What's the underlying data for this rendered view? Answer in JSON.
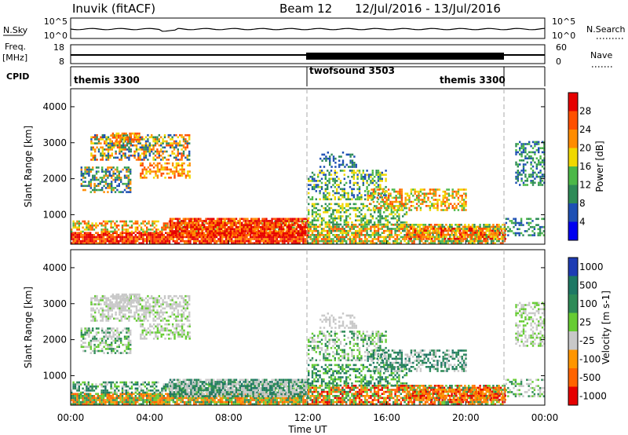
{
  "header": {
    "title": "Inuvik (fitACF)",
    "beam": "Beam 12",
    "dates": "12/Jul/2016 - 13/Jul/2016"
  },
  "panels": {
    "nsky_label": "N.Sky",
    "nsky_ticks": [
      "10^5",
      "10^0"
    ],
    "nsearch_label": "N.Search",
    "nsearch_ticks": [
      "10^5",
      "10^0"
    ],
    "freq_label": "Freq.",
    "freq_unit": "[MHz]",
    "freq_ticks": [
      "18",
      "8"
    ],
    "nave_label": "Nave",
    "nave_ticks": [
      "60",
      "0"
    ],
    "cpid_label": "CPID",
    "cpid_segments": [
      "themis 3300",
      "twofsound 3503",
      "themis 3300"
    ]
  },
  "colors": {
    "power": [
      "#0000f0",
      "#1e50b4",
      "#2e8b57",
      "#4cb848",
      "#f0d800",
      "#ff8c00",
      "#ff5000",
      "#e60000"
    ],
    "velocity": [
      "#1e3cb4",
      "#1e7864",
      "#2e8b57",
      "#66cc33",
      "#c8c8c8",
      "#ff9600",
      "#ff6400",
      "#e60000"
    ]
  },
  "chart_data": [
    {
      "type": "heatmap",
      "title": "",
      "xlabel": "Time UT",
      "ylabel": "Slant Range [km]",
      "xticks": [
        "00:00",
        "04:00",
        "08:00",
        "12:00",
        "16:00",
        "20:00",
        "00:00"
      ],
      "yticks": [
        "1000",
        "2000",
        "3000",
        "4000"
      ],
      "ylim": [
        180,
        4500
      ],
      "xlim": [
        "12/Jul/2016 00:00",
        "13/Jul/2016 00:00"
      ],
      "colorbar_label": "Power [dB]",
      "colorbar_ticks": [
        "4",
        "8",
        "12",
        "16",
        "20",
        "24",
        "28"
      ],
      "colorbar_range": [
        0,
        30
      ]
    },
    {
      "type": "heatmap",
      "title": "",
      "xlabel": "Time UT",
      "ylabel": "Slant Range [km]",
      "xticks": [
        "00:00",
        "04:00",
        "08:00",
        "12:00",
        "16:00",
        "20:00",
        "00:00"
      ],
      "yticks": [
        "1000",
        "2000",
        "3000",
        "4000"
      ],
      "ylim": [
        180,
        4500
      ],
      "xlim": [
        "12/Jul/2016 00:00",
        "13/Jul/2016 00:00"
      ],
      "colorbar_label": "Velocity [m s-1]",
      "colorbar_ticks": [
        "1000",
        "500",
        "100",
        "25",
        "-25",
        "-100",
        "-500",
        "-1000"
      ]
    }
  ]
}
